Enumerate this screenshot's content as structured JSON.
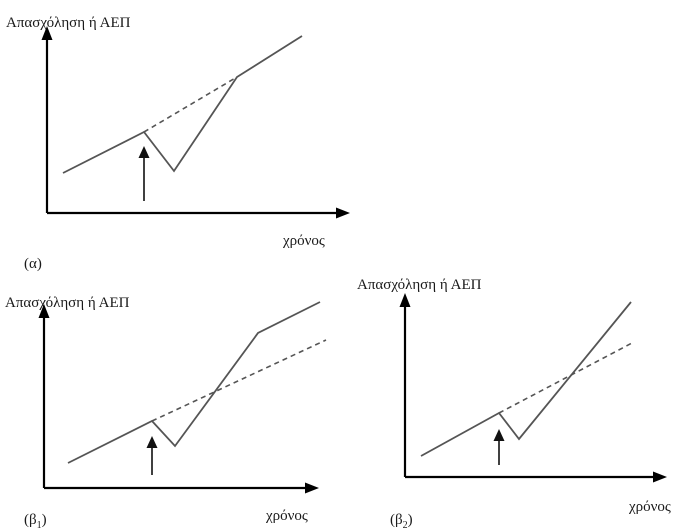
{
  "panels": [
    {
      "id": "a",
      "ylabel": "Απασχόληση ή ΑΕΠ",
      "xlabel": "χρόνος",
      "tag": "(α)",
      "tag_sub": ""
    },
    {
      "id": "b1",
      "ylabel": "Απασχόληση ή ΑΕΠ",
      "xlabel": "χρόνος",
      "tag": "(β",
      "tag_sub": "1",
      "tag_end": ")"
    },
    {
      "id": "b2",
      "ylabel": "Απασχόληση ή ΑΕΠ",
      "xlabel": "χρόνος",
      "tag": "(β",
      "tag_sub": "2",
      "tag_end": ")"
    }
  ],
  "colors": {
    "axis": "#000000",
    "curve": "#555555",
    "text": "#1a1a1a"
  }
}
